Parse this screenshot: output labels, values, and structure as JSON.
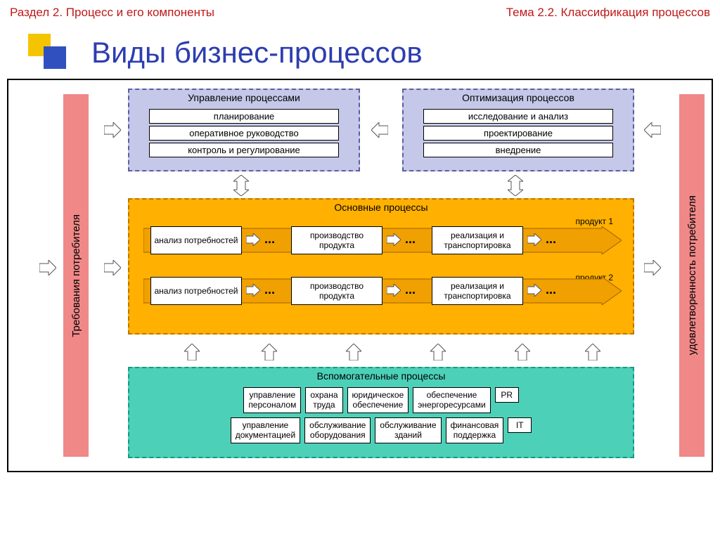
{
  "header": {
    "left": "Раздел 2. Процесс и его компоненты",
    "right": "Тема 2.2. Классификация процессов",
    "color": "#c01818"
  },
  "title": {
    "text": "Виды бизнес-процессов",
    "color": "#2d3db0",
    "logo_colors": {
      "back": "#f5c400",
      "front": "#3050c0"
    }
  },
  "colors": {
    "diagram_border": "#000000",
    "vbar_bg": "#f08888",
    "top_box_bg": "#c5c8e8",
    "top_box_border": "#5a5fa0",
    "main_box_bg": "#ffb000",
    "main_box_border": "#b87800",
    "aux_box_bg": "#4dd0b8",
    "aux_box_border": "#1a9880",
    "arrow_fill": "#ffffff",
    "arrow_stroke": "#555555",
    "chain_arrow_fill": "#f0a000",
    "chain_arrow_stroke": "#a06000"
  },
  "left_bar": "Требования потребителя",
  "right_bar": "удовлетворенность потребителя",
  "top_left": {
    "title": "Управление процессами",
    "items": [
      "планирование",
      "оперативное руководство",
      "контроль и регулирование"
    ]
  },
  "top_right": {
    "title": "Оптимизация процессов",
    "items": [
      "исследование и анализ",
      "проектирование",
      "внедрение"
    ]
  },
  "main": {
    "title": "Основные процессы",
    "product1": "продукт 1",
    "product2": "продукт 2",
    "chain": [
      "анализ потребностей",
      "производство продукта",
      "реализация и транспортировка"
    ],
    "ellipsis": "..."
  },
  "aux": {
    "title": "Вспомогательные процессы",
    "row1": [
      "управление персоналом",
      "охрана труда",
      "юридическое обеспечение",
      "обеспечение энергоресурсами",
      "PR"
    ],
    "row2": [
      "управление документацией",
      "обслуживание оборудования",
      "обслуживание зданий",
      "финансовая поддержка",
      "IT"
    ]
  }
}
